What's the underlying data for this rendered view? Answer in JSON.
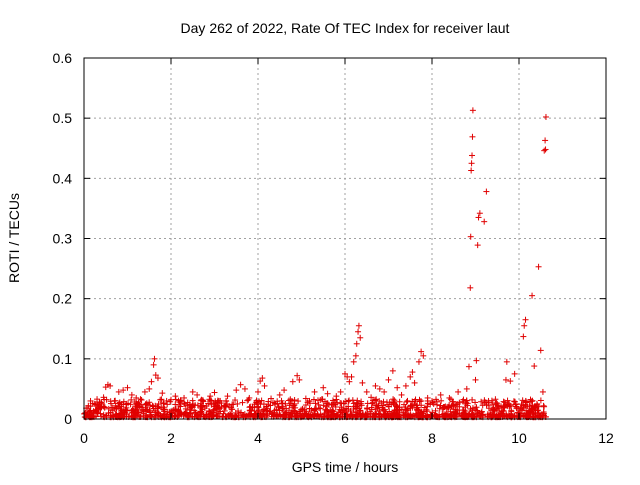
{
  "chart_data": {
    "type": "scatter",
    "title": "Day 262 of 2022, Rate Of TEC Index for receiver laut",
    "xlabel": "GPS time / hours",
    "ylabel": "ROTI / TECUs",
    "xlim": [
      0,
      12
    ],
    "ylim": [
      0,
      0.6
    ],
    "x_ticks": [
      0,
      2,
      4,
      6,
      8,
      10,
      12
    ],
    "y_ticks": [
      0,
      0.1,
      0.2,
      0.3,
      0.4,
      0.5,
      0.6
    ],
    "x_tick_labels": [
      "0",
      "2",
      "4",
      "6",
      "8",
      "10",
      "12"
    ],
    "y_tick_labels": [
      "0",
      "0.1",
      "0.2",
      "0.3",
      "0.4",
      "0.5",
      "0.6"
    ],
    "grid": true,
    "marker": "+",
    "color": "#e00000",
    "series": [
      {
        "name": "",
        "points": [
          [
            0.05,
            0.018
          ],
          [
            0.1,
            0.022
          ],
          [
            0.15,
            0.03
          ],
          [
            0.2,
            0.026
          ],
          [
            0.3,
            0.033
          ],
          [
            0.35,
            0.02
          ],
          [
            0.45,
            0.036
          ],
          [
            0.5,
            0.053
          ],
          [
            0.55,
            0.057
          ],
          [
            0.6,
            0.055
          ],
          [
            0.7,
            0.03
          ],
          [
            0.8,
            0.045
          ],
          [
            0.9,
            0.048
          ],
          [
            1.0,
            0.052
          ],
          [
            1.1,
            0.04
          ],
          [
            1.2,
            0.035
          ],
          [
            1.3,
            0.033
          ],
          [
            1.4,
            0.045
          ],
          [
            1.5,
            0.05
          ],
          [
            1.55,
            0.062
          ],
          [
            1.6,
            0.09
          ],
          [
            1.62,
            0.1
          ],
          [
            1.65,
            0.073
          ],
          [
            1.7,
            0.068
          ],
          [
            1.8,
            0.043
          ],
          [
            1.9,
            0.03
          ],
          [
            2.0,
            0.032
          ],
          [
            2.1,
            0.038
          ],
          [
            2.2,
            0.028
          ],
          [
            2.3,
            0.035
          ],
          [
            2.5,
            0.045
          ],
          [
            2.6,
            0.04
          ],
          [
            2.7,
            0.032
          ],
          [
            2.9,
            0.038
          ],
          [
            3.0,
            0.044
          ],
          [
            3.1,
            0.03
          ],
          [
            3.3,
            0.038
          ],
          [
            3.5,
            0.048
          ],
          [
            3.6,
            0.057
          ],
          [
            3.7,
            0.05
          ],
          [
            3.8,
            0.035
          ],
          [
            4.0,
            0.045
          ],
          [
            4.05,
            0.063
          ],
          [
            4.1,
            0.068
          ],
          [
            4.15,
            0.055
          ],
          [
            4.3,
            0.034
          ],
          [
            4.5,
            0.04
          ],
          [
            4.6,
            0.048
          ],
          [
            4.8,
            0.062
          ],
          [
            4.9,
            0.072
          ],
          [
            4.95,
            0.065
          ],
          [
            5.1,
            0.034
          ],
          [
            5.3,
            0.045
          ],
          [
            5.5,
            0.052
          ],
          [
            5.6,
            0.042
          ],
          [
            5.8,
            0.038
          ],
          [
            5.9,
            0.045
          ],
          [
            6.0,
            0.075
          ],
          [
            6.05,
            0.07
          ],
          [
            6.1,
            0.062
          ],
          [
            6.15,
            0.07
          ],
          [
            6.2,
            0.095
          ],
          [
            6.25,
            0.105
          ],
          [
            6.27,
            0.125
          ],
          [
            6.3,
            0.145
          ],
          [
            6.32,
            0.155
          ],
          [
            6.35,
            0.135
          ],
          [
            6.4,
            0.06
          ],
          [
            6.5,
            0.045
          ],
          [
            6.6,
            0.036
          ],
          [
            6.7,
            0.055
          ],
          [
            6.8,
            0.05
          ],
          [
            6.9,
            0.045
          ],
          [
            7.0,
            0.065
          ],
          [
            7.1,
            0.08
          ],
          [
            7.2,
            0.052
          ],
          [
            7.3,
            0.04
          ],
          [
            7.4,
            0.055
          ],
          [
            7.5,
            0.07
          ],
          [
            7.55,
            0.078
          ],
          [
            7.6,
            0.06
          ],
          [
            7.7,
            0.095
          ],
          [
            7.75,
            0.112
          ],
          [
            7.8,
            0.105
          ],
          [
            7.9,
            0.035
          ],
          [
            8.0,
            0.03
          ],
          [
            8.2,
            0.04
          ],
          [
            8.4,
            0.035
          ],
          [
            8.6,
            0.045
          ],
          [
            8.8,
            0.05
          ],
          [
            8.85,
            0.087
          ],
          [
            8.88,
            0.218
          ],
          [
            8.89,
            0.303
          ],
          [
            8.9,
            0.413
          ],
          [
            8.91,
            0.425
          ],
          [
            8.92,
            0.438
          ],
          [
            8.93,
            0.469
          ],
          [
            8.94,
            0.513
          ],
          [
            9.0,
            0.065
          ],
          [
            9.02,
            0.097
          ],
          [
            9.05,
            0.289
          ],
          [
            9.07,
            0.335
          ],
          [
            9.1,
            0.342
          ],
          [
            9.2,
            0.328
          ],
          [
            9.25,
            0.378
          ],
          [
            9.3,
            0.03
          ],
          [
            9.5,
            0.025
          ],
          [
            9.7,
            0.065
          ],
          [
            9.72,
            0.095
          ],
          [
            9.8,
            0.063
          ],
          [
            9.9,
            0.075
          ],
          [
            10.1,
            0.137
          ],
          [
            10.12,
            0.155
          ],
          [
            10.15,
            0.165
          ],
          [
            10.3,
            0.205
          ],
          [
            10.35,
            0.088
          ],
          [
            10.45,
            0.253
          ],
          [
            10.5,
            0.114
          ],
          [
            10.55,
            0.045
          ],
          [
            10.58,
            0.446
          ],
          [
            10.6,
            0.463
          ],
          [
            10.61,
            0.448
          ],
          [
            10.62,
            0.502
          ]
        ]
      }
    ]
  }
}
